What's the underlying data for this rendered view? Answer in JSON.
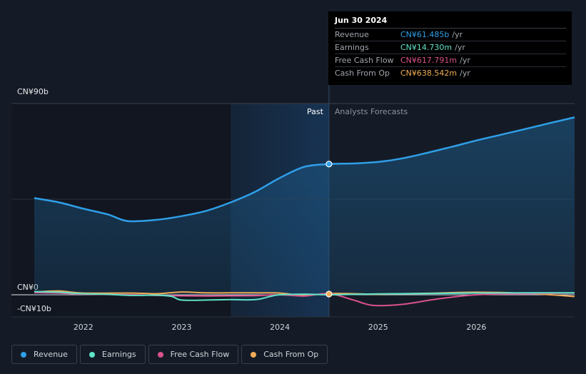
{
  "chart_data": {
    "type": "line",
    "y_labels": [
      "CN¥90b",
      "CN¥0",
      "-CN¥10b"
    ],
    "y_ticks": [
      90,
      0,
      -10
    ],
    "ylim": [
      -10,
      90
    ],
    "x_ticks": [
      "2022",
      "2023",
      "2024",
      "2025",
      "2026"
    ],
    "x_tick_values": [
      2022,
      2023,
      2024,
      2025,
      2026
    ],
    "xlim": [
      2021.5,
      2027.0
    ],
    "highlight_start": 2023.5,
    "divider": 2024.5,
    "past_label": "Past",
    "forecast_label": "Analysts Forecasts",
    "series": [
      {
        "name": "Revenue",
        "color": "#2f9fe8",
        "x": [
          2021.5,
          2021.75,
          2022.0,
          2022.25,
          2022.45,
          2022.75,
          2023.0,
          2023.25,
          2023.5,
          2023.75,
          2024.0,
          2024.25,
          2024.5,
          2024.75,
          2025.0,
          2025.25,
          2025.5,
          2025.75,
          2026.0,
          2026.25,
          2026.5,
          2026.75,
          2027.0
        ],
        "values": [
          45.5,
          43.5,
          40.5,
          37.8,
          34.7,
          35.3,
          37.0,
          39.5,
          43.5,
          48.5,
          55.0,
          60.2,
          61.5,
          61.8,
          62.5,
          64.2,
          66.8,
          69.6,
          72.6,
          75.3,
          78.0,
          80.8,
          83.5
        ]
      },
      {
        "name": "Earnings",
        "color": "#5fe3c8",
        "x": [
          2021.5,
          2021.75,
          2022.0,
          2022.25,
          2022.5,
          2022.75,
          2022.9,
          2023.0,
          2023.25,
          2023.5,
          2023.75,
          2023.9,
          2024.0,
          2024.25,
          2024.5,
          2024.75,
          2025.0,
          2025.5,
          2026.0,
          2026.5,
          2027.0
        ],
        "values": [
          1.5,
          1.2,
          0.5,
          0.2,
          -0.3,
          -0.2,
          -0.8,
          -2.5,
          -2.5,
          -2.3,
          -2.3,
          -0.8,
          0.0,
          0.3,
          0.0,
          0.2,
          0.4,
          0.6,
          0.8,
          0.9,
          0.9
        ]
      },
      {
        "name": "Free Cash Flow",
        "color": "#d9528a",
        "x": [
          2021.5,
          2021.75,
          2022.0,
          2022.5,
          2022.75,
          2023.0,
          2023.25,
          2023.5,
          2023.75,
          2024.0,
          2024.25,
          2024.5,
          2024.75,
          2024.95,
          2025.25,
          2025.6,
          2026.0,
          2026.5,
          2027.0
        ],
        "values": [
          1.0,
          0.8,
          0.3,
          0.0,
          -0.3,
          -0.5,
          -0.6,
          -0.5,
          -0.4,
          0.0,
          -0.6,
          0.6,
          -2.5,
          -5.0,
          -4.5,
          -2.0,
          0.0,
          0.5,
          0.8
        ]
      },
      {
        "name": "Cash From Op",
        "color": "#f0ab57",
        "x": [
          2021.5,
          2021.75,
          2022.0,
          2022.5,
          2022.75,
          2023.0,
          2023.25,
          2023.5,
          2023.75,
          2024.0,
          2024.25,
          2024.5,
          2024.75,
          2025.0,
          2025.5,
          2026.0,
          2026.5,
          2027.0
        ],
        "values": [
          1.3,
          1.8,
          0.8,
          0.8,
          0.5,
          1.3,
          0.9,
          0.9,
          0.9,
          0.8,
          -0.3,
          0.6,
          0.5,
          0.3,
          0.7,
          1.2,
          0.7,
          -0.8
        ]
      }
    ],
    "marker_x": 2024.5
  },
  "tooltip": {
    "date": "Jun 30 2024",
    "rows": [
      {
        "label": "Revenue",
        "value": "CN¥61.485b",
        "unit": "/yr",
        "color": "#2f9fe8"
      },
      {
        "label": "Earnings",
        "value": "CN¥14.730m",
        "unit": "/yr",
        "color": "#5fe3c8"
      },
      {
        "label": "Free Cash Flow",
        "value": "CN¥617.791m",
        "unit": "/yr",
        "color": "#d9528a"
      },
      {
        "label": "Cash From Op",
        "value": "CN¥638.542m",
        "unit": "/yr",
        "color": "#f0ab57"
      }
    ]
  },
  "legend": [
    {
      "label": "Revenue",
      "color": "#2f9fe8"
    },
    {
      "label": "Earnings",
      "color": "#5fe3c8"
    },
    {
      "label": "Free Cash Flow",
      "color": "#d9528a"
    },
    {
      "label": "Cash From Op",
      "color": "#f0ab57"
    }
  ]
}
